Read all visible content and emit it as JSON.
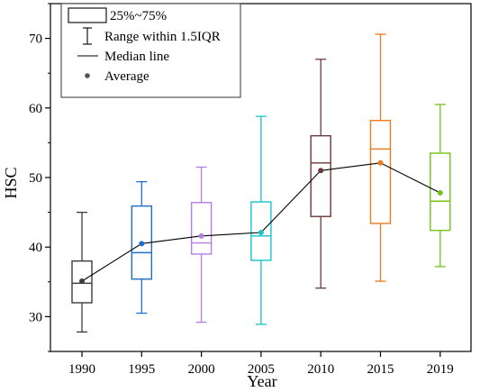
{
  "chart_data": {
    "type": "box",
    "xlabel": "Year",
    "ylabel": "HSC",
    "ylim": [
      25,
      75
    ],
    "yticks": [
      30,
      40,
      50,
      60,
      70
    ],
    "categories": [
      "1990",
      "1995",
      "2000",
      "2005",
      "2010",
      "2015",
      "2019"
    ],
    "boxes": [
      {
        "category": "1990",
        "whisker_low": 27.8,
        "q1": 32.0,
        "median": 34.8,
        "q3": 38.0,
        "whisker_high": 45.0,
        "mean": 35.1,
        "color": "#3d3d3d"
      },
      {
        "category": "1995",
        "whisker_low": 30.5,
        "q1": 35.4,
        "median": 39.2,
        "q3": 45.9,
        "whisker_high": 49.4,
        "mean": 40.5,
        "color": "#1f6fd0"
      },
      {
        "category": "2000",
        "whisker_low": 29.2,
        "q1": 39.0,
        "median": 40.6,
        "q3": 46.4,
        "whisker_high": 51.5,
        "mean": 41.6,
        "color": "#b47ee6"
      },
      {
        "category": "2005",
        "whisker_low": 28.9,
        "q1": 38.1,
        "median": 41.6,
        "q3": 46.5,
        "whisker_high": 58.8,
        "mean": 42.1,
        "color": "#17c3c8"
      },
      {
        "category": "2010",
        "whisker_low": 34.1,
        "q1": 44.4,
        "median": 52.1,
        "q3": 56.0,
        "whisker_high": 67.0,
        "mean": 51.0,
        "color": "#6b3a3a"
      },
      {
        "category": "2015",
        "whisker_low": 35.1,
        "q1": 43.4,
        "median": 54.1,
        "q3": 58.2,
        "whisker_high": 70.6,
        "mean": 52.1,
        "color": "#ee7a1e"
      },
      {
        "category": "2019",
        "whisker_low": 37.2,
        "q1": 42.4,
        "median": 46.6,
        "q3": 53.5,
        "whisker_high": 60.5,
        "mean": 47.8,
        "color": "#74c21c"
      }
    ],
    "mean_line_color": "#000000",
    "legend": {
      "position": "top-left",
      "entries": [
        {
          "symbol": "box",
          "label": "25%~75%"
        },
        {
          "symbol": "whisker",
          "label": "Range within 1.5IQR"
        },
        {
          "symbol": "line",
          "label": "Median line"
        },
        {
          "symbol": "dot",
          "label": "Average"
        }
      ]
    },
    "grid": false
  }
}
